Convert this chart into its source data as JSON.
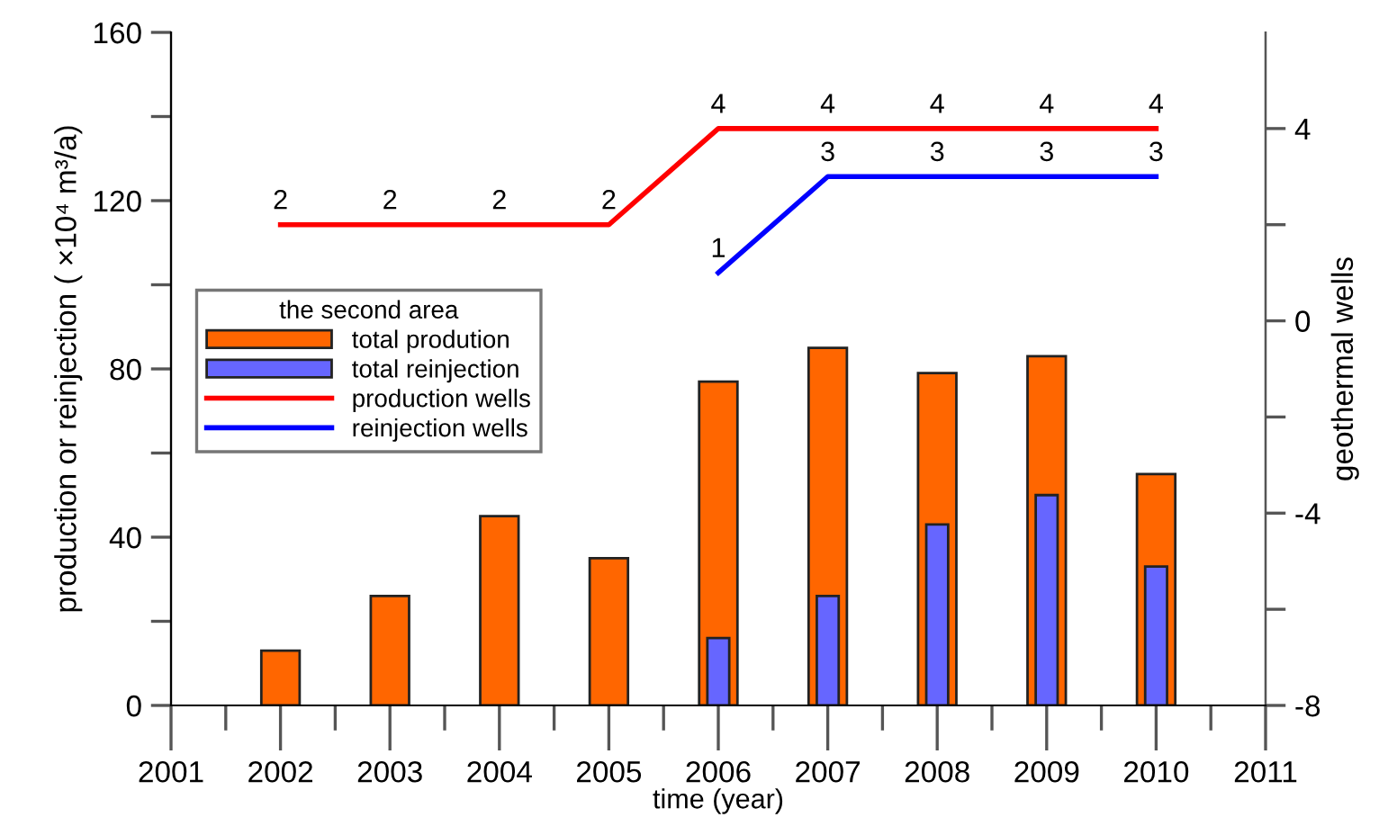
{
  "chart_data": {
    "type": "bar",
    "xlabel": "time (year)",
    "ylabel": "production or reinjection ( ×10⁴ m³/a)",
    "y2label": "geothermal wells",
    "legend_title": "the second area",
    "legend": "center left",
    "grid": false,
    "xlim": [
      2001,
      2011
    ],
    "xticks": [
      2001,
      {
        "value": 2001.5,
        "label": null
      },
      2002,
      {
        "value": 2002.5,
        "label": null
      },
      2003,
      {
        "value": 2003.5,
        "label": null
      },
      2004,
      {
        "value": 2004.5,
        "label": null
      },
      2005,
      {
        "value": 2005.5,
        "label": null
      },
      2006,
      {
        "value": 2006.5,
        "label": null
      },
      2007,
      {
        "value": 2007.5,
        "label": null
      },
      2008,
      {
        "value": 2008.5,
        "label": null
      },
      2009,
      {
        "value": 2009.5,
        "label": null
      },
      2010,
      {
        "value": 2010.5,
        "label": null
      },
      2011
    ],
    "ylim": [
      0,
      160
    ],
    "yticks": [
      0,
      {
        "value": 20,
        "label": null
      },
      40,
      {
        "value": 60,
        "label": null
      },
      80,
      {
        "value": 100,
        "label": null
      },
      120,
      {
        "value": 140,
        "label": null
      },
      160
    ],
    "y2lim": [
      -8,
      6
    ],
    "y2ticks": [
      -8,
      {
        "value": -6,
        "label": null
      },
      -4,
      {
        "value": -2,
        "label": null
      },
      0,
      {
        "value": 2,
        "label": null
      },
      4
    ],
    "series": [
      {
        "name": "total prodution",
        "color": "#ff6600",
        "x": [
          2002,
          2003,
          2004,
          2005,
          2006,
          2007,
          2008,
          2009,
          2010
        ],
        "values": [
          13,
          26,
          45,
          35,
          77,
          85,
          79,
          83,
          55
        ]
      },
      {
        "name": "total reinjection",
        "color": "#6666ff",
        "x": [
          2006,
          2007,
          2008,
          2009,
          2010
        ],
        "values": [
          16,
          26,
          43,
          50,
          33
        ]
      },
      {
        "name": "production wells",
        "type": "line",
        "axis": "y2",
        "color": "#ff0000",
        "data_labels": true,
        "x": [
          2002,
          2003,
          2004,
          2005,
          2006,
          2007,
          2008,
          2009,
          2010
        ],
        "values": [
          2,
          2,
          2,
          2,
          4,
          4,
          4,
          4,
          4
        ]
      },
      {
        "name": "reinjection wells",
        "type": "line",
        "axis": "y2",
        "color": "#0000ff",
        "data_labels": true,
        "x": [
          2006,
          2007,
          2008,
          2009,
          2010
        ],
        "values": [
          1,
          3,
          3,
          3,
          3
        ]
      }
    ]
  }
}
